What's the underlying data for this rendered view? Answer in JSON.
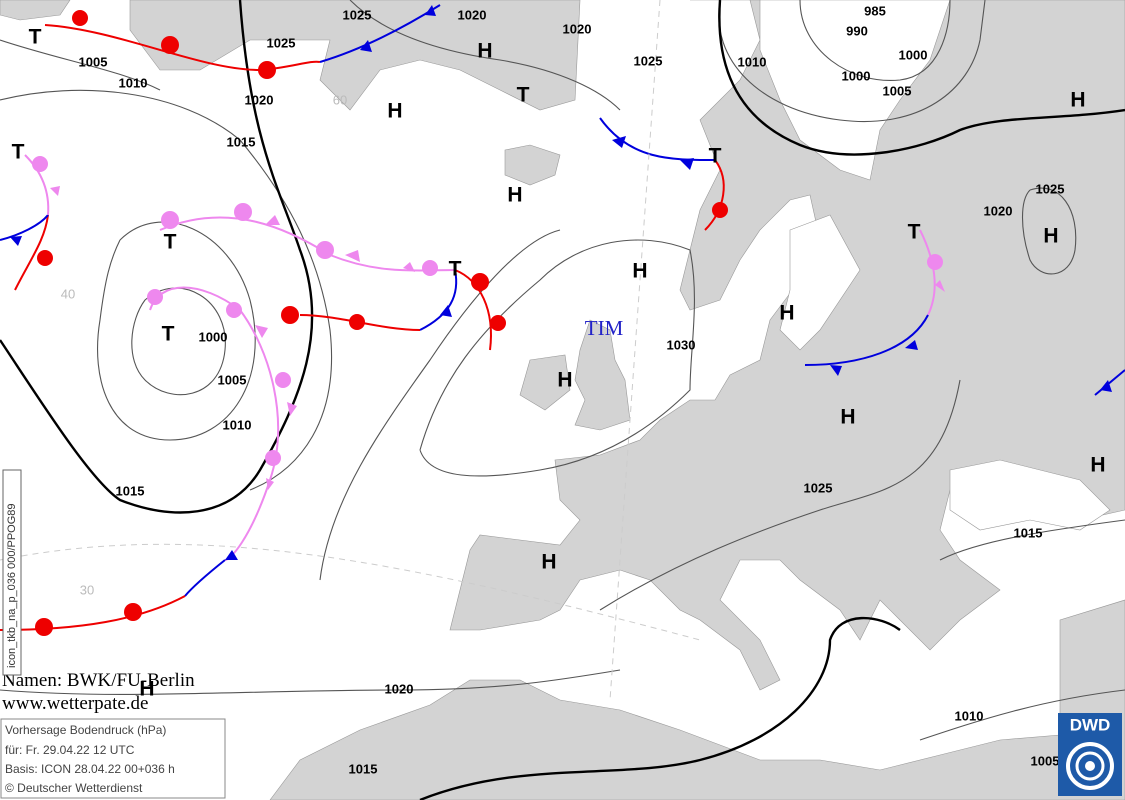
{
  "centers": [
    "T",
    "H",
    "T",
    "H",
    "H",
    "T",
    "T",
    "T",
    "T",
    "T",
    "H",
    "H",
    "H",
    "H",
    "H",
    "T",
    "H",
    "H",
    "H",
    "H"
  ],
  "isobar_labels": [
    1005,
    1010,
    1025,
    1020,
    1015,
    1025,
    1020,
    1020,
    1025,
    985,
    990,
    1010,
    1000,
    1000,
    1005,
    1025,
    1020,
    1000,
    1005,
    1010,
    1015,
    1030,
    1025,
    1015,
    1020,
    1010,
    1015,
    1005
  ],
  "grid_labels": [
    60,
    40,
    30
  ],
  "storm_name": "TIM",
  "credits": {
    "names": "Namen: BWK/FU-Berlin",
    "website": "www.wetterpate.de"
  },
  "info_box": {
    "title": "Vorhersage Bodendruck (hPa)",
    "valid": "für:  Fr. 29.04.22  12 UTC",
    "basis": "Basis: ICON  28.04.22 00+036 h",
    "copyright": "© Deutscher Wetterdienst"
  },
  "logo": "DWD",
  "product_code": "icon_tkb_na_p_036 000/PPOG89"
}
